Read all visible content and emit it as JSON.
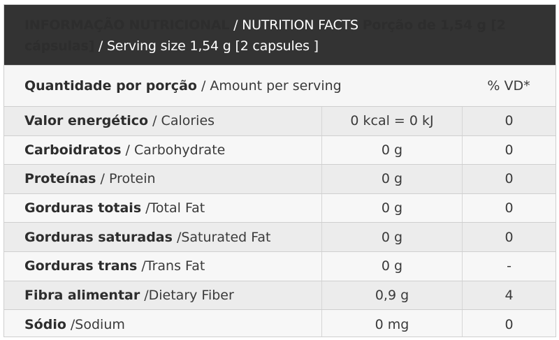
{
  "header": {
    "title_pt": "INFORMAÇÃO NUTRICIONAL",
    "title_sep": " / NUTRITION FACTS ",
    "portion_pt": "Porção de 1,54 g [2 cápsulas]",
    "portion_sep": " / ",
    "portion_en": "Serving size 1,54 g [2 capsules ]"
  },
  "subheader": {
    "amount_pt": "Quantidade por porção",
    "amount_en": "/ Amount per serving",
    "vd_label": "% VD*"
  },
  "rows": [
    {
      "name_pt": "Valor energético",
      "name_en": "/ Calories",
      "amount": "0 kcal = 0 kJ",
      "vd": "0"
    },
    {
      "name_pt": "Carboidratos",
      "name_en": "/ Carbohydrate",
      "amount": "0 g",
      "vd": "0"
    },
    {
      "name_pt": "Proteínas",
      "name_en": "/ Protein",
      "amount": "0 g",
      "vd": "0"
    },
    {
      "name_pt": "Gorduras totais",
      "name_en": "/Total Fat",
      "amount": "0 g",
      "vd": "0"
    },
    {
      "name_pt": "Gorduras saturadas",
      "name_en": "/Saturated Fat",
      "amount": "0 g",
      "vd": "0"
    },
    {
      "name_pt": "Gorduras trans",
      "name_en": "/Trans Fat",
      "amount": "0 g",
      "vd": "-"
    },
    {
      "name_pt": "Fibra alimentar",
      "name_en": "/Dietary Fiber",
      "amount": "0,9 g",
      "vd": "4"
    },
    {
      "name_pt": "Sódio",
      "name_en": "/Sodium",
      "amount": "0 mg",
      "vd": "0"
    }
  ]
}
